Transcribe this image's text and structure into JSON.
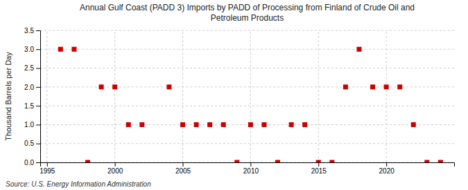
{
  "chart_data": {
    "type": "scatter",
    "title": "Annual Gulf Coast (PADD 3) Imports by PADD of Processing from Finland of Crude Oil and\nPetroleum Products",
    "ylabel": "Thousand Barrels per Day",
    "source": "Source: U.S. Energy Information Administration",
    "x": [
      1996,
      1997,
      1998,
      1999,
      2000,
      2001,
      2002,
      2004,
      2005,
      2006,
      2007,
      2008,
      2009,
      2010,
      2011,
      2012,
      2013,
      2014,
      2015,
      2016,
      2017,
      2018,
      2019,
      2020,
      2021,
      2022,
      2023,
      2024
    ],
    "values": [
      3.0,
      3.0,
      0.0,
      2.0,
      2.0,
      1.0,
      1.0,
      2.0,
      1.0,
      1.0,
      1.0,
      1.0,
      0.0,
      1.0,
      1.0,
      0.0,
      1.0,
      1.0,
      0.0,
      0.0,
      2.0,
      3.0,
      2.0,
      2.0,
      2.0,
      1.0,
      0.0,
      0.0
    ],
    "color": "#cc0000",
    "marker": "square",
    "xlim": [
      1994.5,
      2025
    ],
    "ylim": [
      0.0,
      3.5
    ],
    "xticks": [
      1995,
      2000,
      2005,
      2010,
      2015,
      2020
    ],
    "yticks": [
      {
        "value": 0.0,
        "label": "0.0"
      },
      0.5,
      {
        "value": 1.0,
        "label": "1.0"
      },
      1.5,
      {
        "value": 2.0,
        "label": "2.0"
      },
      2.5,
      {
        "value": 3.0,
        "label": "3.0"
      },
      3.5
    ],
    "grid": true
  }
}
